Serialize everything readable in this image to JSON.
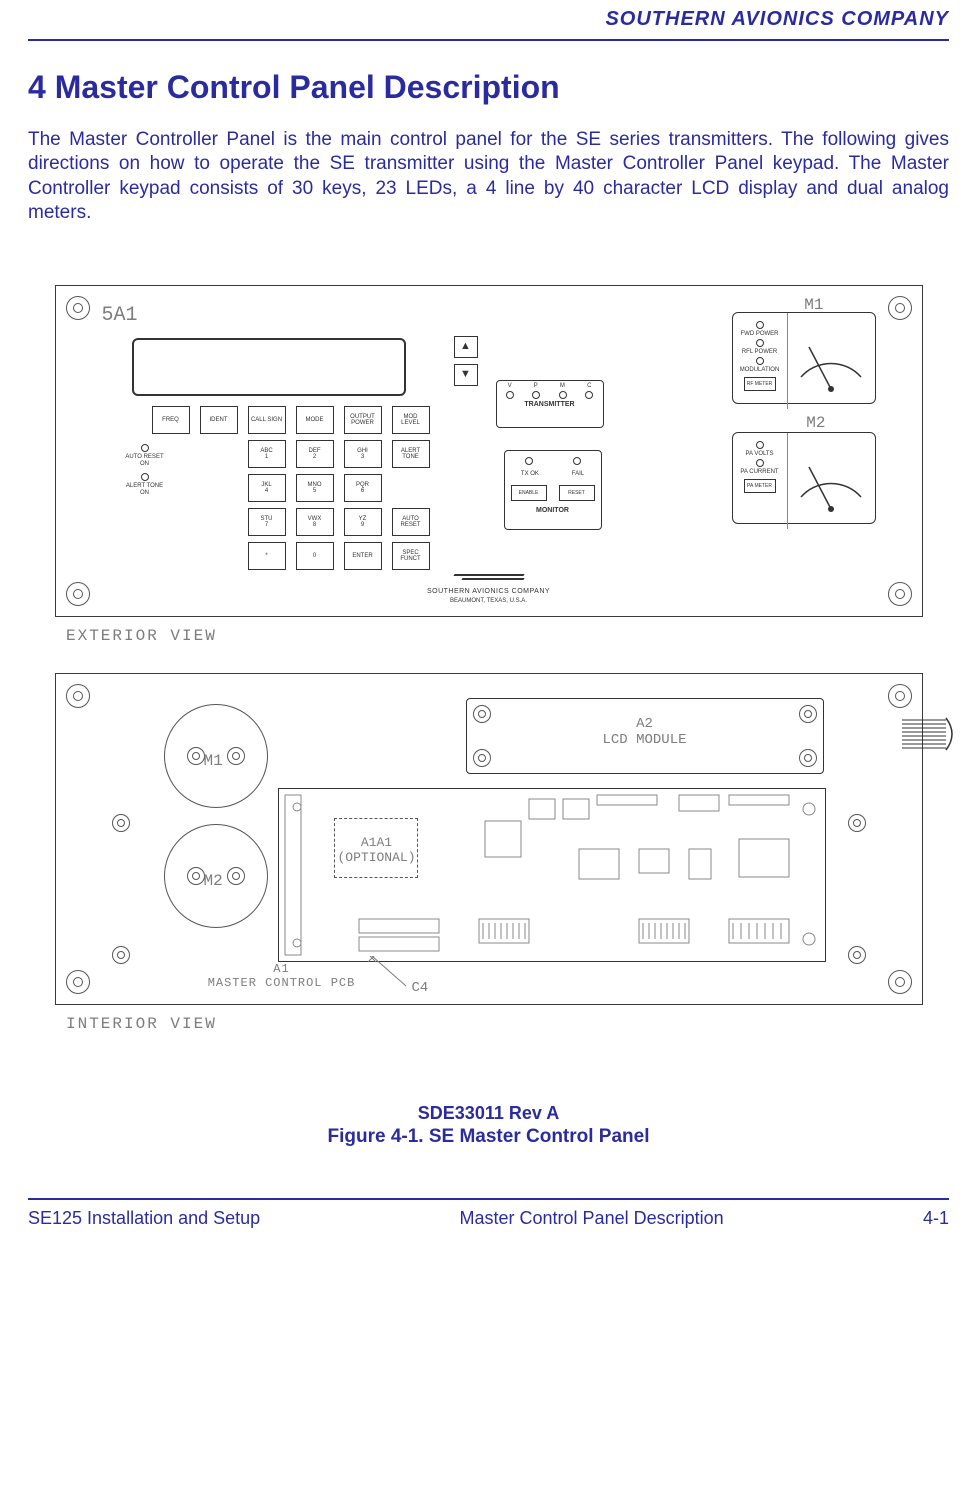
{
  "header": {
    "company": "SOUTHERN AVIONICS COMPANY"
  },
  "title": "4  Master Control Panel Description",
  "paragraph": "The Master Controller Panel is the main control panel for the SE series transmitters.  The following gives directions on how to operate the SE transmitter using the Master Controller Panel keypad.  The Master Controller keypad consists of 30 keys, 23 LEDs, a 4 line by 40 character LCD display and dual analog meters.",
  "exterior": {
    "panel_id": "5A1",
    "arrows": {
      "up": "▲",
      "down": "▼"
    },
    "led_col": [
      "AUTO RESET ON",
      "ALERT TONE ON"
    ],
    "keypad": [
      [
        "FREQ",
        "IDENT",
        "CALL SIGN",
        "MODE",
        "OUTPUT POWER",
        "MOD LEVEL"
      ],
      [
        "",
        "",
        "ABC 1",
        "DEF 2",
        "GHI 3",
        "ALERT TONE"
      ],
      [
        "",
        "",
        "JKL 4",
        "MNO 5",
        "PQR 6",
        ""
      ],
      [
        "",
        "",
        "STU 7",
        "VWX 8",
        "YZ 9",
        "AUTO RESET"
      ],
      [
        "",
        "",
        "*",
        "0",
        "ENTER",
        "SPEC FUNCT"
      ]
    ],
    "transmitter": {
      "leds": [
        "V",
        "P",
        "M",
        "C"
      ],
      "label": "TRANSMITTER"
    },
    "monitor": {
      "ok": "TX OK",
      "fail": "FAIL",
      "buttons": [
        "ENABLE",
        "RESET"
      ],
      "label": "MONITOR"
    },
    "meter1": {
      "ref": "M1",
      "lines": [
        "FWD POWER",
        "RFL POWER",
        "MODULATION"
      ],
      "btn": "RF METER"
    },
    "meter2": {
      "ref": "M2",
      "lines": [
        "PA VOLTS",
        "PA CURRENT"
      ],
      "btn": "PA METER"
    },
    "logo": {
      "company": "SOUTHERN  AVIONICS  COMPANY",
      "addr": "BEAUMONT, TEXAS, U.S.A."
    },
    "caption": "EXTERIOR  VIEW"
  },
  "interior": {
    "m1": "M1",
    "m2": "M2",
    "lcd": {
      "ref": "A2",
      "text": "LCD  MODULE"
    },
    "a1a1": {
      "ref": "A1A1",
      "note": "(OPTIONAL)"
    },
    "pcb": {
      "ref": "A1",
      "text": "MASTER  CONTROL  PCB"
    },
    "c4": "C4",
    "caption": "INTERIOR  VIEW"
  },
  "figure": {
    "rev": "SDE33011 Rev A",
    "caption": "Figure 4-1.  SE Master Control Panel"
  },
  "footer": {
    "left": "SE125 Installation and Setup",
    "center": "Master Control Panel Description",
    "right": "4-1"
  },
  "colors": {
    "text": "#2b2ba0",
    "diagram_gray": "#7d7d7d",
    "line": "#333333"
  }
}
